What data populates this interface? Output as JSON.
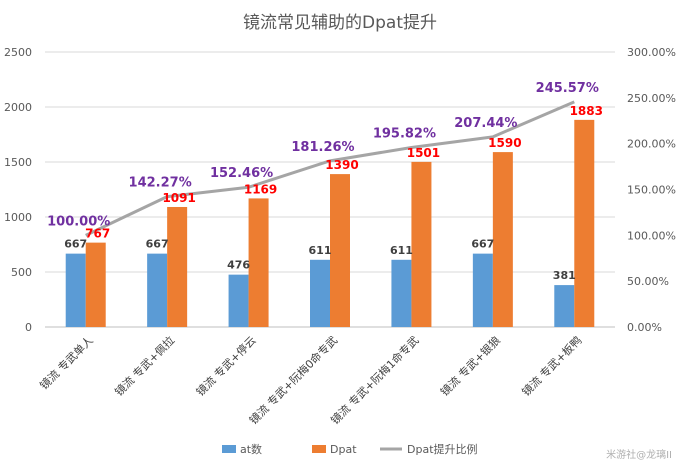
{
  "chart_data": {
    "type": "bar",
    "title": "镜流常见辅助的Dpat提升",
    "categories": [
      "镜流 专武单人",
      "镜流 专武+佩拉",
      "镜流 专武+停云",
      "镜流 专武+阮梅0命专武",
      "镜流 专武+阮梅1命专武",
      "镜流 专武+银狼",
      "镜流 专武+板鸭"
    ],
    "ylim": [
      0,
      2500
    ],
    "y2lim": [
      0,
      3.0
    ],
    "yticks": [
      "0",
      "500",
      "1000",
      "1500",
      "2000",
      "2500"
    ],
    "y2ticks": [
      "0.00%",
      "50.00%",
      "100.00%",
      "150.00%",
      "200.00%",
      "250.00%",
      "300.00%"
    ],
    "series": [
      {
        "name": "at数",
        "type": "bar",
        "axis": "left",
        "color": "#5b9bd5",
        "values": [
          667,
          667,
          476,
          611,
          611,
          667,
          381
        ]
      },
      {
        "name": "Dpat",
        "type": "bar",
        "axis": "left",
        "color": "#ed7d31",
        "values": [
          767,
          1091,
          1169,
          1390,
          1501,
          1590,
          1883
        ]
      },
      {
        "name": "Dpat提升比例",
        "type": "line",
        "axis": "right",
        "color": "#a5a5a5",
        "values": [
          1.0,
          1.4227,
          1.5246,
          1.8126,
          1.9582,
          2.0744,
          2.4557
        ],
        "labels": [
          "100.00%",
          "142.27%",
          "152.46%",
          "181.26%",
          "195.82%",
          "207.44%",
          "245.57%"
        ]
      }
    ],
    "grid": true,
    "legend": "bottom"
  },
  "watermark": "米游社@龙璃II"
}
